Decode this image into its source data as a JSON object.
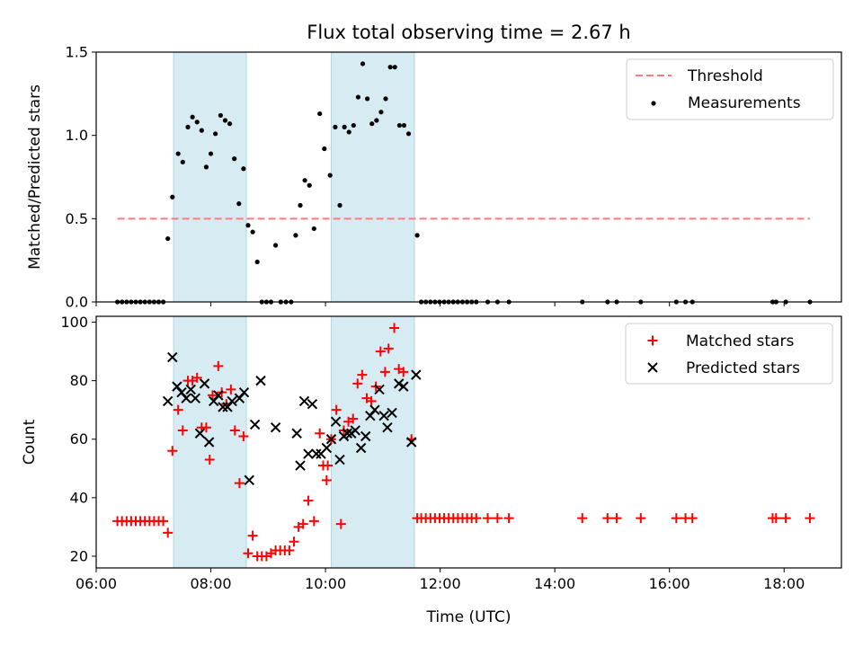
{
  "title": "Flux total observing time = 2.67 h",
  "chart_data": [
    {
      "type": "scatter",
      "ylabel": "Matched/Predicted stars",
      "xlabel": "",
      "xlim": [
        6.0,
        19.0
      ],
      "ylim": [
        0.0,
        1.5
      ],
      "yticks": [
        0.0,
        0.5,
        1.0,
        1.5
      ],
      "ytick_labels": [
        "0.0",
        "0.5",
        "1.0",
        "1.5"
      ],
      "legend_position": "upper right",
      "shaded_intervals": [
        [
          7.35,
          8.62
        ],
        [
          10.1,
          11.55
        ]
      ],
      "threshold": {
        "name": "Threshold",
        "value": 0.5,
        "x_range": [
          6.37,
          18.45
        ],
        "color": "#ff7b7b"
      },
      "measurements": {
        "name": "Measurements",
        "color": "#000000",
        "points": [
          [
            6.37,
            0
          ],
          [
            6.45,
            0
          ],
          [
            6.53,
            0
          ],
          [
            6.61,
            0
          ],
          [
            6.69,
            0
          ],
          [
            6.77,
            0
          ],
          [
            6.85,
            0
          ],
          [
            6.93,
            0
          ],
          [
            7.01,
            0
          ],
          [
            7.09,
            0
          ],
          [
            7.17,
            0
          ],
          [
            7.25,
            0.38
          ],
          [
            7.33,
            0.63
          ],
          [
            7.43,
            0.89
          ],
          [
            7.51,
            0.84
          ],
          [
            7.6,
            1.05
          ],
          [
            7.68,
            1.11
          ],
          [
            7.76,
            1.08
          ],
          [
            7.84,
            1.03
          ],
          [
            7.92,
            0.81
          ],
          [
            8.0,
            0.89
          ],
          [
            8.08,
            1.01
          ],
          [
            8.17,
            1.12
          ],
          [
            8.25,
            1.09
          ],
          [
            8.33,
            1.07
          ],
          [
            8.41,
            0.86
          ],
          [
            8.49,
            0.59
          ],
          [
            8.57,
            0.8
          ],
          [
            8.65,
            0.46
          ],
          [
            8.73,
            0.42
          ],
          [
            8.81,
            0.24
          ],
          [
            8.89,
            0
          ],
          [
            8.97,
            0
          ],
          [
            9.05,
            0
          ],
          [
            9.13,
            0.34
          ],
          [
            9.22,
            0
          ],
          [
            9.31,
            0
          ],
          [
            9.4,
            0
          ],
          [
            9.48,
            0.4
          ],
          [
            9.56,
            0.58
          ],
          [
            9.64,
            0.73
          ],
          [
            9.72,
            0.7
          ],
          [
            9.8,
            0.44
          ],
          [
            9.9,
            1.13
          ],
          [
            9.98,
            0.92
          ],
          [
            10.08,
            0.76
          ],
          [
            10.17,
            1.05
          ],
          [
            10.25,
            0.58
          ],
          [
            10.33,
            1.05
          ],
          [
            10.41,
            1.02
          ],
          [
            10.49,
            1.06
          ],
          [
            10.57,
            1.23
          ],
          [
            10.65,
            1.43
          ],
          [
            10.73,
            1.22
          ],
          [
            10.81,
            1.07
          ],
          [
            10.89,
            1.09
          ],
          [
            10.97,
            1.14
          ],
          [
            11.05,
            1.22
          ],
          [
            11.13,
            1.41
          ],
          [
            11.21,
            1.41
          ],
          [
            11.29,
            1.06
          ],
          [
            11.37,
            1.06
          ],
          [
            11.45,
            1.01
          ],
          [
            11.6,
            0.4
          ],
          [
            11.67,
            0
          ],
          [
            11.75,
            0
          ],
          [
            11.83,
            0
          ],
          [
            11.91,
            0
          ],
          [
            11.99,
            0
          ],
          [
            12.07,
            0
          ],
          [
            12.15,
            0
          ],
          [
            12.23,
            0
          ],
          [
            12.31,
            0
          ],
          [
            12.39,
            0
          ],
          [
            12.47,
            0
          ],
          [
            12.55,
            0
          ],
          [
            12.63,
            0
          ],
          [
            12.83,
            0
          ],
          [
            13.0,
            0
          ],
          [
            13.2,
            0
          ],
          [
            14.48,
            0
          ],
          [
            14.92,
            0
          ],
          [
            15.08,
            0
          ],
          [
            15.5,
            0
          ],
          [
            16.12,
            0
          ],
          [
            16.28,
            0
          ],
          [
            16.4,
            0
          ],
          [
            17.8,
            0
          ],
          [
            17.86,
            0
          ],
          [
            18.03,
            0
          ],
          [
            18.45,
            0
          ]
        ]
      }
    },
    {
      "type": "scatter",
      "ylabel": "Count",
      "xlabel": "Time (UTC)",
      "xlim": [
        6.0,
        19.0
      ],
      "ylim": [
        16,
        102
      ],
      "yticks": [
        20,
        40,
        60,
        80,
        100
      ],
      "ytick_labels": [
        "20",
        "40",
        "60",
        "80",
        "100"
      ],
      "xticks": [
        6,
        8,
        10,
        12,
        14,
        16,
        18
      ],
      "xtick_labels": [
        "06:00",
        "08:00",
        "10:00",
        "12:00",
        "14:00",
        "16:00",
        "18:00"
      ],
      "legend_position": "upper right",
      "shaded_intervals": [
        [
          7.35,
          8.62
        ],
        [
          10.1,
          11.55
        ]
      ],
      "series": [
        {
          "name": "Matched stars",
          "marker": "plus",
          "color": "#ff0000",
          "points": [
            [
              6.37,
              32
            ],
            [
              6.45,
              32
            ],
            [
              6.53,
              32
            ],
            [
              6.61,
              32
            ],
            [
              6.69,
              32
            ],
            [
              6.77,
              32
            ],
            [
              6.85,
              32
            ],
            [
              6.93,
              32
            ],
            [
              7.01,
              32
            ],
            [
              7.09,
              32
            ],
            [
              7.17,
              32
            ],
            [
              7.25,
              28
            ],
            [
              7.33,
              56
            ],
            [
              7.43,
              70
            ],
            [
              7.51,
              63
            ],
            [
              7.6,
              80
            ],
            [
              7.68,
              80
            ],
            [
              7.76,
              81
            ],
            [
              7.84,
              64
            ],
            [
              7.92,
              64
            ],
            [
              7.98,
              53
            ],
            [
              8.03,
              75
            ],
            [
              8.13,
              85
            ],
            [
              8.19,
              76
            ],
            [
              8.27,
              72
            ],
            [
              8.35,
              77
            ],
            [
              8.42,
              63
            ],
            [
              8.5,
              45
            ],
            [
              8.57,
              61
            ],
            [
              8.65,
              21
            ],
            [
              8.73,
              27
            ],
            [
              8.81,
              20
            ],
            [
              8.89,
              20
            ],
            [
              8.97,
              20
            ],
            [
              9.05,
              21
            ],
            [
              9.13,
              22
            ],
            [
              9.21,
              22
            ],
            [
              9.29,
              22
            ],
            [
              9.37,
              22
            ],
            [
              9.45,
              25
            ],
            [
              9.53,
              30
            ],
            [
              9.61,
              31
            ],
            [
              9.7,
              39
            ],
            [
              9.8,
              32
            ],
            [
              9.9,
              62
            ],
            [
              9.96,
              51
            ],
            [
              10.04,
              51
            ],
            [
              10.02,
              46
            ],
            [
              10.1,
              60
            ],
            [
              10.19,
              70
            ],
            [
              10.27,
              31
            ],
            [
              10.32,
              63
            ],
            [
              10.4,
              66
            ],
            [
              10.48,
              67
            ],
            [
              10.56,
              79
            ],
            [
              10.64,
              82
            ],
            [
              10.72,
              74
            ],
            [
              10.8,
              73
            ],
            [
              10.88,
              78
            ],
            [
              10.96,
              90
            ],
            [
              11.04,
              83
            ],
            [
              11.1,
              91
            ],
            [
              11.2,
              98
            ],
            [
              11.28,
              84
            ],
            [
              11.36,
              83
            ],
            [
              11.5,
              60
            ],
            [
              11.6,
              33
            ],
            [
              11.67,
              33
            ],
            [
              11.75,
              33
            ],
            [
              11.83,
              33
            ],
            [
              11.91,
              33
            ],
            [
              11.99,
              33
            ],
            [
              12.07,
              33
            ],
            [
              12.15,
              33
            ],
            [
              12.23,
              33
            ],
            [
              12.31,
              33
            ],
            [
              12.39,
              33
            ],
            [
              12.47,
              33
            ],
            [
              12.55,
              33
            ],
            [
              12.63,
              33
            ],
            [
              12.83,
              33
            ],
            [
              13.0,
              33
            ],
            [
              13.2,
              33
            ],
            [
              14.48,
              33
            ],
            [
              14.92,
              33
            ],
            [
              15.08,
              33
            ],
            [
              15.5,
              33
            ],
            [
              16.12,
              33
            ],
            [
              16.28,
              33
            ],
            [
              16.4,
              33
            ],
            [
              17.8,
              33
            ],
            [
              17.86,
              33
            ],
            [
              18.03,
              33
            ],
            [
              18.45,
              33
            ]
          ]
        },
        {
          "name": "Predicted stars",
          "marker": "x",
          "color": "#000000",
          "points": [
            [
              7.25,
              73
            ],
            [
              7.33,
              88
            ],
            [
              7.41,
              78
            ],
            [
              7.49,
              76
            ],
            [
              7.57,
              74
            ],
            [
              7.65,
              77
            ],
            [
              7.73,
              74
            ],
            [
              7.81,
              62
            ],
            [
              7.89,
              79
            ],
            [
              7.97,
              59
            ],
            [
              8.05,
              73
            ],
            [
              8.13,
              75
            ],
            [
              8.21,
              71
            ],
            [
              8.29,
              71
            ],
            [
              8.37,
              73
            ],
            [
              8.5,
              74
            ],
            [
              8.58,
              76
            ],
            [
              8.67,
              46
            ],
            [
              8.77,
              65
            ],
            [
              8.87,
              80
            ],
            [
              9.13,
              64
            ],
            [
              9.5,
              62
            ],
            [
              9.56,
              51
            ],
            [
              9.63,
              73
            ],
            [
              9.7,
              55
            ],
            [
              9.77,
              72
            ],
            [
              9.84,
              55
            ],
            [
              9.92,
              55
            ],
            [
              10.02,
              57
            ],
            [
              10.1,
              60
            ],
            [
              10.18,
              66
            ],
            [
              10.25,
              53
            ],
            [
              10.32,
              61
            ],
            [
              10.38,
              62
            ],
            [
              10.45,
              62
            ],
            [
              10.52,
              63
            ],
            [
              10.62,
              57
            ],
            [
              10.7,
              61
            ],
            [
              10.78,
              68
            ],
            [
              10.86,
              70
            ],
            [
              10.94,
              77
            ],
            [
              11.02,
              68
            ],
            [
              11.08,
              64
            ],
            [
              11.16,
              69
            ],
            [
              11.28,
              79
            ],
            [
              11.36,
              78
            ],
            [
              11.5,
              59
            ],
            [
              11.58,
              82
            ]
          ]
        }
      ]
    }
  ]
}
